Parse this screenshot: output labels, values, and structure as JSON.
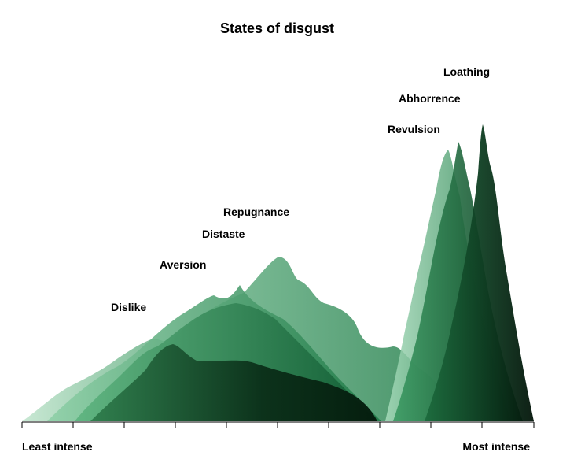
{
  "title": "States of disgust",
  "axis": {
    "left_label": "Least intense",
    "right_label": "Most intense"
  },
  "states": [
    {
      "name": "Dislike",
      "color": "#7cc49a"
    },
    {
      "name": "Aversion",
      "color": "#3f9e68"
    },
    {
      "name": "Distaste",
      "color": "#1f7a47"
    },
    {
      "name": "Repugnance",
      "color": "#0e4a2b"
    },
    {
      "name": "Revulsion",
      "color": "#58b07e"
    },
    {
      "name": "Abhorrence",
      "color": "#2a8a53"
    },
    {
      "name": "Loathing",
      "color": "#0b3d22"
    }
  ]
}
